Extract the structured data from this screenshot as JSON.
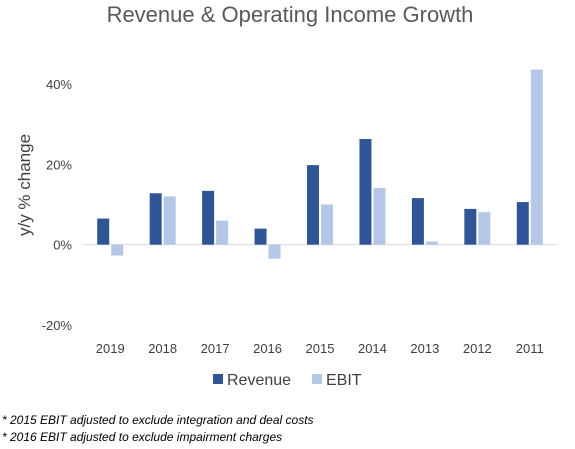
{
  "chart_data": {
    "type": "bar",
    "title": "Revenue & Operating Income Growth",
    "xlabel": "",
    "ylabel": "y/y % change",
    "categories": [
      "2019",
      "2018",
      "2017",
      "2016",
      "2015",
      "2014",
      "2013",
      "2012",
      "2011"
    ],
    "series": [
      {
        "name": "Revenue",
        "color": "#2f5597",
        "values": [
          6.5,
          12.8,
          13.4,
          4.0,
          19.8,
          26.3,
          11.6,
          8.9,
          10.6
        ]
      },
      {
        "name": "EBIT",
        "color": "#b4c7e7",
        "values": [
          -2.7,
          12.0,
          6.0,
          -3.5,
          10.0,
          14.1,
          0.8,
          8.1,
          43.6
        ]
      }
    ],
    "ylim": [
      -20,
      45
    ],
    "yticks": [
      -20,
      0,
      20,
      40
    ],
    "ytick_labels": [
      "-20%",
      "0%",
      "20%",
      "40%"
    ],
    "grid": false,
    "legend": "bottom"
  },
  "footnotes": [
    "* 2015 EBIT adjusted to exclude integration and deal costs",
    "* 2016 EBIT adjusted to exclude impairment charges"
  ]
}
